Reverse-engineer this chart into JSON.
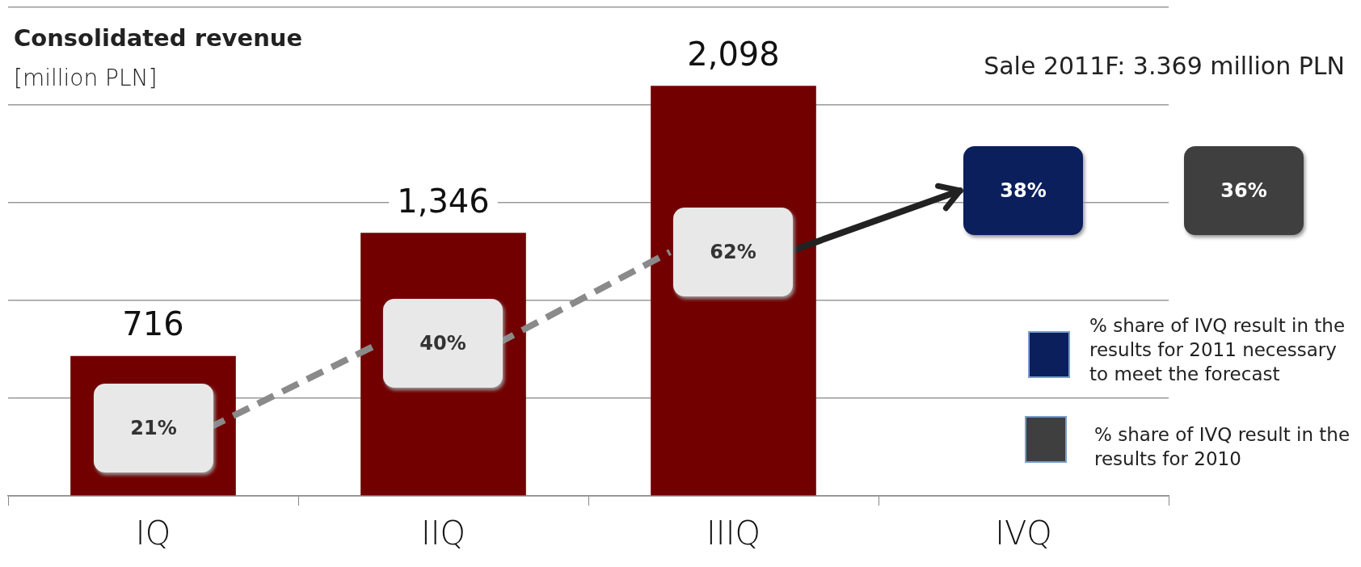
{
  "chart_data": {
    "type": "bar",
    "title": "Consolidated revenue",
    "subtitle": "[million  PLN]",
    "categories": [
      "IQ",
      "IIQ",
      "IIIQ",
      "IVQ"
    ],
    "values": [
      716,
      1346,
      2098,
      null
    ],
    "value_labels": [
      "716",
      "1,346",
      "2,098",
      null
    ],
    "color": "#720000",
    "ylim": [
      0,
      2500
    ],
    "yticks": [
      {
        "value": 0,
        "label": null
      },
      {
        "value": 500,
        "label": null
      },
      {
        "value": 1000,
        "label": null
      },
      {
        "value": 1500,
        "label": null
      },
      {
        "value": 2000,
        "label": null
      },
      {
        "value": 2500,
        "label": null
      }
    ],
    "grid": "y",
    "tick_labels": "x",
    "legend": false,
    "annotations": [
      "Sale 2011F: 3.369 million  PLN",
      "21%",
      "40%",
      "62%",
      "38%",
      "36%",
      "% share of IVQ result in the results for 2011 necessary to meet the forecast",
      "% share of IVQ result in the results for 2010"
    ]
  }
}
